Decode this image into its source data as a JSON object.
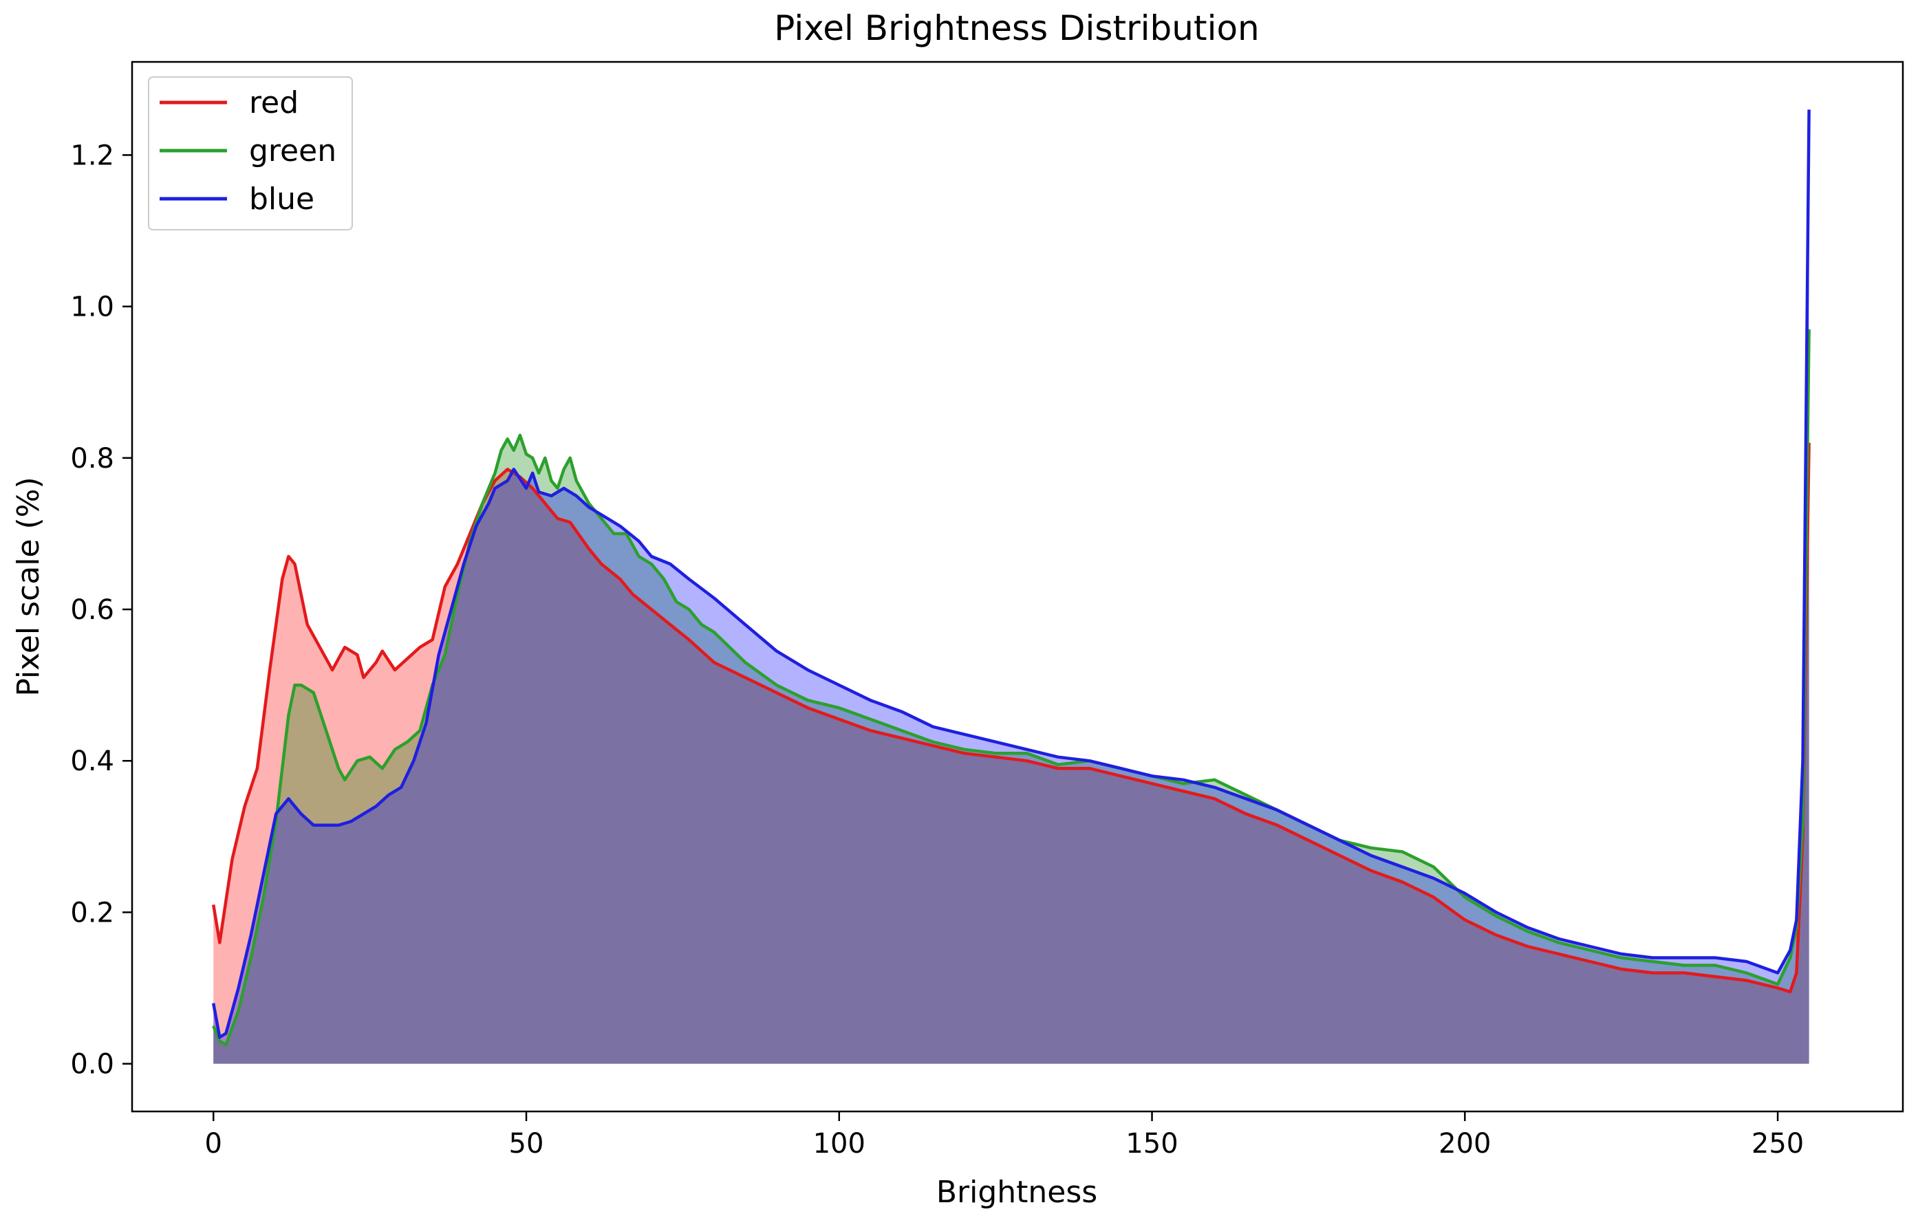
{
  "chart_data": {
    "type": "area",
    "title": "Pixel Brightness Distribution",
    "xlabel": "Brightness",
    "ylabel": "Pixel scale (%)",
    "xlim": [
      -13,
      270
    ],
    "ylim": [
      -0.063,
      1.323
    ],
    "xticks": [
      0,
      50,
      100,
      150,
      200,
      250
    ],
    "yticks": [
      0.0,
      0.2,
      0.4,
      0.6,
      0.8,
      1.0,
      1.2
    ],
    "xtick_labels": [
      "0",
      "50",
      "100",
      "150",
      "200",
      "250"
    ],
    "ytick_labels": [
      "0.0",
      "0.2",
      "0.4",
      "0.6",
      "0.8",
      "1.0",
      "1.2"
    ],
    "legend_position": "top-left",
    "series": [
      {
        "name": "red",
        "color": "#e31a1c",
        "fill": "#ff0000",
        "points": [
          [
            0,
            0.21
          ],
          [
            1,
            0.16
          ],
          [
            3,
            0.27
          ],
          [
            5,
            0.34
          ],
          [
            7,
            0.39
          ],
          [
            9,
            0.52
          ],
          [
            11,
            0.64
          ],
          [
            12,
            0.67
          ],
          [
            13,
            0.66
          ],
          [
            15,
            0.58
          ],
          [
            17,
            0.55
          ],
          [
            19,
            0.52
          ],
          [
            21,
            0.55
          ],
          [
            23,
            0.54
          ],
          [
            24,
            0.51
          ],
          [
            26,
            0.53
          ],
          [
            27,
            0.545
          ],
          [
            29,
            0.52
          ],
          [
            31,
            0.535
          ],
          [
            33,
            0.55
          ],
          [
            35,
            0.56
          ],
          [
            37,
            0.63
          ],
          [
            39,
            0.66
          ],
          [
            41,
            0.7
          ],
          [
            43,
            0.74
          ],
          [
            45,
            0.77
          ],
          [
            47,
            0.785
          ],
          [
            49,
            0.775
          ],
          [
            51,
            0.76
          ],
          [
            53,
            0.74
          ],
          [
            55,
            0.72
          ],
          [
            57,
            0.715
          ],
          [
            60,
            0.68
          ],
          [
            62,
            0.66
          ],
          [
            65,
            0.64
          ],
          [
            67,
            0.62
          ],
          [
            70,
            0.6
          ],
          [
            73,
            0.58
          ],
          [
            76,
            0.56
          ],
          [
            80,
            0.53
          ],
          [
            85,
            0.51
          ],
          [
            90,
            0.49
          ],
          [
            95,
            0.47
          ],
          [
            100,
            0.455
          ],
          [
            105,
            0.44
          ],
          [
            110,
            0.43
          ],
          [
            115,
            0.42
          ],
          [
            120,
            0.41
          ],
          [
            125,
            0.405
          ],
          [
            130,
            0.4
          ],
          [
            135,
            0.39
          ],
          [
            140,
            0.39
          ],
          [
            145,
            0.38
          ],
          [
            150,
            0.37
          ],
          [
            155,
            0.36
          ],
          [
            160,
            0.35
          ],
          [
            165,
            0.33
          ],
          [
            170,
            0.315
          ],
          [
            175,
            0.295
          ],
          [
            180,
            0.275
          ],
          [
            185,
            0.255
          ],
          [
            190,
            0.24
          ],
          [
            195,
            0.22
          ],
          [
            200,
            0.19
          ],
          [
            205,
            0.17
          ],
          [
            210,
            0.155
          ],
          [
            215,
            0.145
          ],
          [
            220,
            0.135
          ],
          [
            225,
            0.125
          ],
          [
            230,
            0.12
          ],
          [
            235,
            0.12
          ],
          [
            240,
            0.115
          ],
          [
            245,
            0.11
          ],
          [
            250,
            0.1
          ],
          [
            252,
            0.095
          ],
          [
            253,
            0.12
          ],
          [
            254,
            0.3
          ],
          [
            255,
            0.82
          ]
        ]
      },
      {
        "name": "green",
        "color": "#2ca02c",
        "fill": "#008000",
        "points": [
          [
            0,
            0.05
          ],
          [
            1,
            0.03
          ],
          [
            2,
            0.025
          ],
          [
            4,
            0.07
          ],
          [
            6,
            0.14
          ],
          [
            8,
            0.22
          ],
          [
            10,
            0.32
          ],
          [
            12,
            0.46
          ],
          [
            13,
            0.5
          ],
          [
            14,
            0.5
          ],
          [
            16,
            0.49
          ],
          [
            18,
            0.44
          ],
          [
            20,
            0.39
          ],
          [
            21,
            0.375
          ],
          [
            23,
            0.4
          ],
          [
            25,
            0.405
          ],
          [
            27,
            0.39
          ],
          [
            29,
            0.415
          ],
          [
            31,
            0.425
          ],
          [
            33,
            0.44
          ],
          [
            35,
            0.5
          ],
          [
            37,
            0.54
          ],
          [
            39,
            0.62
          ],
          [
            41,
            0.69
          ],
          [
            43,
            0.74
          ],
          [
            45,
            0.78
          ],
          [
            46,
            0.81
          ],
          [
            47,
            0.825
          ],
          [
            48,
            0.81
          ],
          [
            49,
            0.83
          ],
          [
            50,
            0.805
          ],
          [
            51,
            0.8
          ],
          [
            52,
            0.78
          ],
          [
            53,
            0.8
          ],
          [
            54,
            0.77
          ],
          [
            55,
            0.76
          ],
          [
            56,
            0.785
          ],
          [
            57,
            0.8
          ],
          [
            58,
            0.77
          ],
          [
            60,
            0.74
          ],
          [
            62,
            0.72
          ],
          [
            64,
            0.7
          ],
          [
            66,
            0.7
          ],
          [
            68,
            0.67
          ],
          [
            70,
            0.66
          ],
          [
            72,
            0.64
          ],
          [
            74,
            0.61
          ],
          [
            76,
            0.6
          ],
          [
            78,
            0.58
          ],
          [
            80,
            0.57
          ],
          [
            85,
            0.53
          ],
          [
            90,
            0.5
          ],
          [
            95,
            0.48
          ],
          [
            100,
            0.47
          ],
          [
            105,
            0.455
          ],
          [
            110,
            0.44
          ],
          [
            115,
            0.425
          ],
          [
            120,
            0.415
          ],
          [
            125,
            0.41
          ],
          [
            130,
            0.41
          ],
          [
            135,
            0.395
          ],
          [
            140,
            0.4
          ],
          [
            145,
            0.39
          ],
          [
            150,
            0.38
          ],
          [
            155,
            0.37
          ],
          [
            160,
            0.375
          ],
          [
            165,
            0.355
          ],
          [
            170,
            0.335
          ],
          [
            175,
            0.315
          ],
          [
            180,
            0.295
          ],
          [
            185,
            0.285
          ],
          [
            190,
            0.28
          ],
          [
            195,
            0.26
          ],
          [
            200,
            0.22
          ],
          [
            205,
            0.195
          ],
          [
            210,
            0.175
          ],
          [
            215,
            0.16
          ],
          [
            220,
            0.15
          ],
          [
            225,
            0.14
          ],
          [
            230,
            0.135
          ],
          [
            235,
            0.13
          ],
          [
            240,
            0.13
          ],
          [
            245,
            0.12
          ],
          [
            250,
            0.105
          ],
          [
            252,
            0.14
          ],
          [
            253,
            0.18
          ],
          [
            254,
            0.32
          ],
          [
            255,
            0.97
          ]
        ]
      },
      {
        "name": "blue",
        "color": "#1f1fe0",
        "fill": "#0000ff",
        "points": [
          [
            0,
            0.08
          ],
          [
            1,
            0.035
          ],
          [
            2,
            0.04
          ],
          [
            4,
            0.1
          ],
          [
            6,
            0.17
          ],
          [
            8,
            0.25
          ],
          [
            10,
            0.33
          ],
          [
            12,
            0.35
          ],
          [
            14,
            0.33
          ],
          [
            16,
            0.315
          ],
          [
            18,
            0.315
          ],
          [
            20,
            0.315
          ],
          [
            22,
            0.32
          ],
          [
            24,
            0.33
          ],
          [
            26,
            0.34
          ],
          [
            28,
            0.355
          ],
          [
            30,
            0.365
          ],
          [
            32,
            0.4
          ],
          [
            34,
            0.45
          ],
          [
            36,
            0.54
          ],
          [
            38,
            0.6
          ],
          [
            40,
            0.66
          ],
          [
            42,
            0.71
          ],
          [
            44,
            0.74
          ],
          [
            45,
            0.76
          ],
          [
            47,
            0.77
          ],
          [
            48,
            0.785
          ],
          [
            50,
            0.76
          ],
          [
            51,
            0.78
          ],
          [
            52,
            0.755
          ],
          [
            54,
            0.75
          ],
          [
            56,
            0.76
          ],
          [
            58,
            0.75
          ],
          [
            60,
            0.735
          ],
          [
            62,
            0.725
          ],
          [
            65,
            0.71
          ],
          [
            68,
            0.69
          ],
          [
            70,
            0.67
          ],
          [
            73,
            0.66
          ],
          [
            76,
            0.64
          ],
          [
            80,
            0.615
          ],
          [
            85,
            0.58
          ],
          [
            90,
            0.545
          ],
          [
            95,
            0.52
          ],
          [
            100,
            0.5
          ],
          [
            105,
            0.48
          ],
          [
            110,
            0.465
          ],
          [
            115,
            0.445
          ],
          [
            120,
            0.435
          ],
          [
            125,
            0.425
          ],
          [
            130,
            0.415
          ],
          [
            135,
            0.405
          ],
          [
            140,
            0.4
          ],
          [
            145,
            0.39
          ],
          [
            150,
            0.38
          ],
          [
            155,
            0.375
          ],
          [
            160,
            0.365
          ],
          [
            165,
            0.35
          ],
          [
            170,
            0.335
          ],
          [
            175,
            0.315
          ],
          [
            180,
            0.295
          ],
          [
            185,
            0.275
          ],
          [
            190,
            0.26
          ],
          [
            195,
            0.245
          ],
          [
            200,
            0.225
          ],
          [
            205,
            0.2
          ],
          [
            210,
            0.18
          ],
          [
            215,
            0.165
          ],
          [
            220,
            0.155
          ],
          [
            225,
            0.145
          ],
          [
            230,
            0.14
          ],
          [
            235,
            0.14
          ],
          [
            240,
            0.14
          ],
          [
            245,
            0.135
          ],
          [
            250,
            0.12
          ],
          [
            252,
            0.15
          ],
          [
            253,
            0.19
          ],
          [
            254,
            0.4
          ],
          [
            255,
            1.26
          ]
        ]
      }
    ]
  }
}
